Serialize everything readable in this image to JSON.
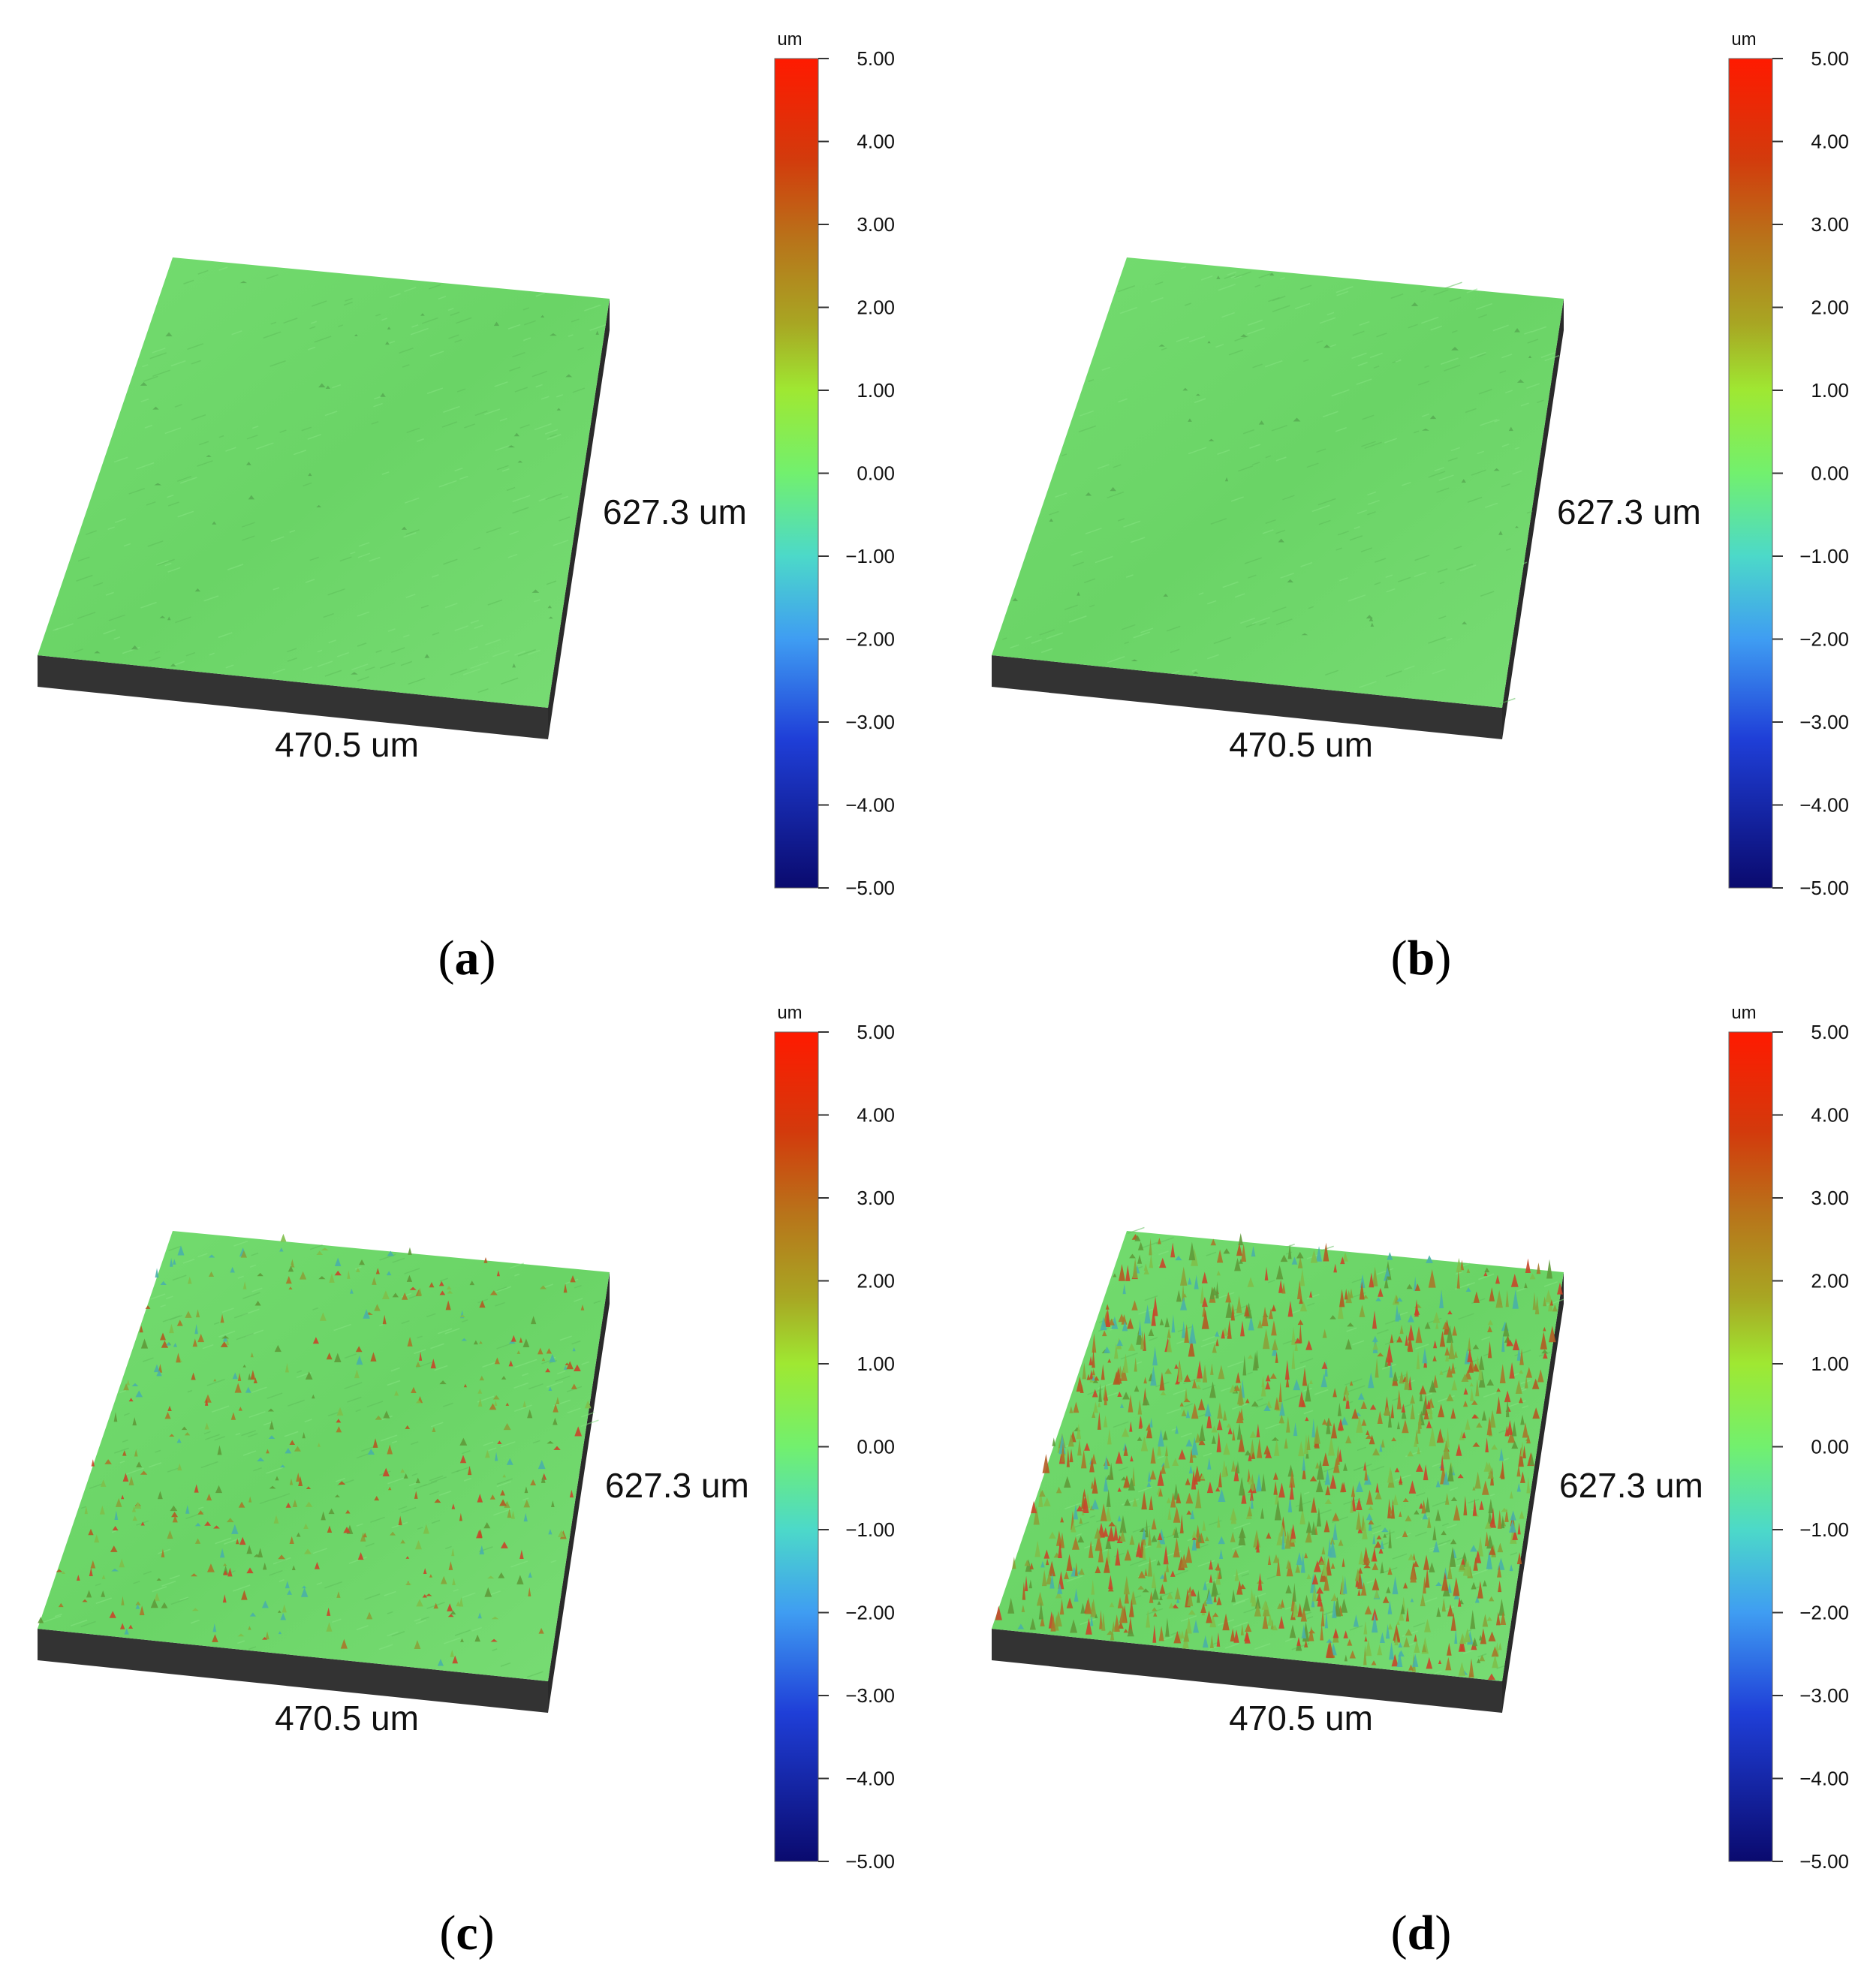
{
  "colorbar": {
    "unit": "um",
    "ticks": [
      "5.00",
      "4.00",
      "3.00",
      "2.00",
      "1.00",
      "0.00",
      "−1.00",
      "−2.00",
      "−3.00",
      "−4.00",
      "−5.00"
    ],
    "range_um": [
      -5,
      5
    ],
    "colors": [
      "#0a0a6e",
      "#1f3fd8",
      "#3f9df2",
      "#4cd9c9",
      "#72f06e",
      "#9fe832",
      "#a8a623",
      "#b8741a",
      "#d33a0c",
      "#ff1a00"
    ]
  },
  "surface": {
    "width_label": "470.5 um",
    "length_label": "627.3 um",
    "top_color": "#6fd86a",
    "side_color": "#333333"
  },
  "panels": [
    {
      "id": "a",
      "caption_open": "(",
      "caption_letter": "a",
      "caption_close": ")",
      "roughness": "low"
    },
    {
      "id": "b",
      "caption_open": "(",
      "caption_letter": "b",
      "caption_close": ")",
      "roughness": "low"
    },
    {
      "id": "c",
      "caption_open": "(",
      "caption_letter": "c",
      "caption_close": ")",
      "roughness": "medium"
    },
    {
      "id": "d",
      "caption_open": "(",
      "caption_letter": "d",
      "caption_close": ")",
      "roughness": "high"
    }
  ]
}
